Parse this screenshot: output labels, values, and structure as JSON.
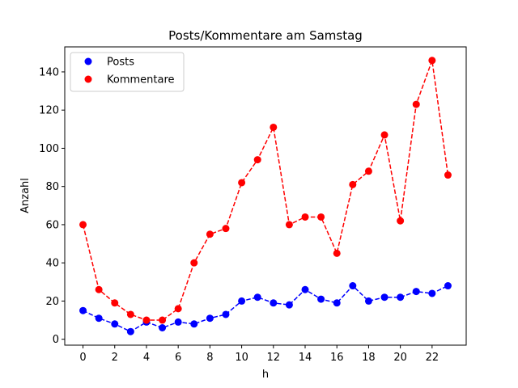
{
  "chart_data": {
    "type": "line",
    "title": "Posts/Kommentare am Samstag",
    "xlabel": "h",
    "ylabel": "Anzahl",
    "xlim": [
      -1.15,
      24.15
    ],
    "ylim": [
      -3.1,
      153.1
    ],
    "x_ticks": [
      0,
      2,
      4,
      6,
      8,
      10,
      12,
      14,
      16,
      18,
      20,
      22
    ],
    "y_ticks": [
      0,
      20,
      40,
      60,
      80,
      100,
      120,
      140
    ],
    "grid": false,
    "legend_position": "top-left",
    "x": [
      0,
      1,
      2,
      3,
      4,
      5,
      6,
      7,
      8,
      9,
      10,
      11,
      12,
      13,
      14,
      15,
      16,
      17,
      18,
      19,
      20,
      21,
      22,
      23
    ],
    "series": [
      {
        "name": "Posts",
        "color": "#0000ff",
        "marker": "circle",
        "linestyle": "dashed",
        "values": [
          15,
          11,
          8,
          4,
          9,
          6,
          9,
          8,
          11,
          13,
          20,
          22,
          19,
          18,
          26,
          21,
          19,
          28,
          20,
          22,
          22,
          25,
          24,
          28
        ]
      },
      {
        "name": "Kommentare",
        "color": "#ff0000",
        "marker": "circle",
        "linestyle": "dashed",
        "values": [
          60,
          26,
          19,
          13,
          10,
          10,
          16,
          40,
          55,
          58,
          82,
          94,
          111,
          60,
          64,
          64,
          45,
          81,
          88,
          107,
          62,
          123,
          146,
          86
        ]
      }
    ]
  }
}
